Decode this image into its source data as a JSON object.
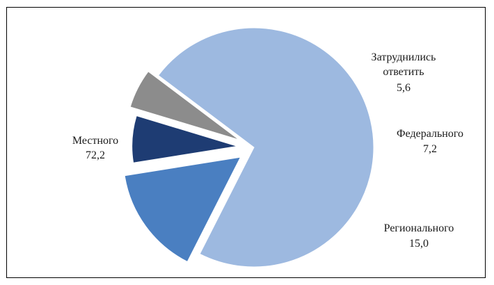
{
  "chart_data": {
    "type": "pie",
    "exploded": true,
    "legend": "none",
    "slices": [
      {
        "label": "Местного",
        "value": 72.2,
        "value_text": "72,2",
        "color": "#9db9e0"
      },
      {
        "label": "Регионального",
        "value": 15.0,
        "value_text": "15,0",
        "color": "#4a7fc1"
      },
      {
        "label": "Федерального",
        "value": 7.2,
        "value_text": "7,2",
        "color": "#1e3c73"
      },
      {
        "label": "Затруднились ответить",
        "label_lines": [
          "Затруднились",
          "ответить"
        ],
        "value": 5.6,
        "value_text": "5,6",
        "color": "#8c8c8c"
      }
    ]
  }
}
